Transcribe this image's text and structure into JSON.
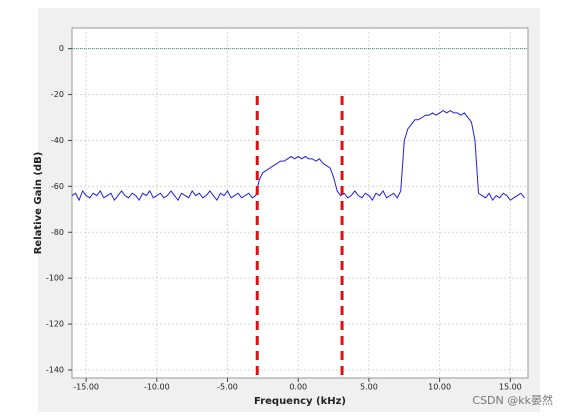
{
  "chart_data": {
    "type": "line",
    "xlabel": "Frequency (kHz)",
    "ylabel": "Relative Gain (dB)",
    "watermark": "CSDN @kk晏然",
    "xlim": [
      -16,
      16.25
    ],
    "ylim": [
      -143.5,
      9
    ],
    "xticks": [
      {
        "value": -15,
        "label": "-15.00"
      },
      {
        "value": -10,
        "label": "-10.00"
      },
      {
        "value": -5,
        "label": "-5.00"
      },
      {
        "value": 0,
        "label": "0.00"
      },
      {
        "value": 5,
        "label": "5.00"
      },
      {
        "value": 10,
        "label": "10.00"
      },
      {
        "value": 15,
        "label": "15.00"
      }
    ],
    "yticks": [
      0,
      -20,
      -40,
      -60,
      -80,
      -100,
      -120,
      -140
    ],
    "grid": true,
    "hline": 0,
    "hline_color": "#2a9d7a",
    "vlines": [
      -2.9,
      3.1
    ],
    "vline_color": "#e01010",
    "x": [
      -16,
      -15.75,
      -15.5,
      -15.25,
      -15,
      -14.75,
      -14.5,
      -14.25,
      -14,
      -13.75,
      -13.5,
      -13.25,
      -13,
      -12.75,
      -12.5,
      -12.25,
      -12,
      -11.75,
      -11.5,
      -11.25,
      -11,
      -10.75,
      -10.5,
      -10.25,
      -10,
      -9.75,
      -9.5,
      -9.25,
      -9,
      -8.75,
      -8.5,
      -8.25,
      -8,
      -7.75,
      -7.5,
      -7.25,
      -7,
      -6.75,
      -6.5,
      -6.25,
      -6,
      -5.75,
      -5.5,
      -5.25,
      -5,
      -4.75,
      -4.5,
      -4.25,
      -4,
      -3.75,
      -3.5,
      -3.25,
      -3,
      -2.75,
      -2.5,
      -2.25,
      -2,
      -1.75,
      -1.5,
      -1.25,
      -1,
      -0.75,
      -0.5,
      -0.25,
      0,
      0.25,
      0.5,
      0.75,
      1,
      1.25,
      1.5,
      1.75,
      2,
      2.25,
      2.5,
      2.75,
      3,
      3.25,
      3.5,
      3.75,
      4,
      4.25,
      4.5,
      4.75,
      5,
      5.25,
      5.5,
      5.75,
      6,
      6.25,
      6.5,
      6.75,
      7,
      7.25,
      7.5,
      7.75,
      8,
      8.25,
      8.5,
      8.75,
      9,
      9.25,
      9.5,
      9.75,
      10,
      10.25,
      10.5,
      10.75,
      11,
      11.25,
      11.5,
      11.75,
      12,
      12.25,
      12.5,
      12.75,
      13,
      13.25,
      13.5,
      13.75,
      14,
      14.25,
      14.5,
      14.75,
      15,
      15.25,
      15.5,
      15.75,
      16
    ],
    "series": [
      {
        "color": "#1f1fe0",
        "values": [
          -64,
          -63,
          -66,
          -62,
          -64,
          -65,
          -63,
          -64,
          -62,
          -65,
          -64,
          -63,
          -66,
          -64,
          -62,
          -64,
          -65,
          -63,
          -64,
          -66,
          -63,
          -64,
          -62,
          -65,
          -64,
          -63,
          -65,
          -64,
          -62,
          -64,
          -66,
          -63,
          -64,
          -65,
          -62,
          -64,
          -63,
          -65,
          -64,
          -62,
          -64,
          -66,
          -63,
          -64,
          -62,
          -65,
          -64,
          -63,
          -65,
          -64,
          -63,
          -65,
          -64,
          -57,
          -54,
          -53,
          -52,
          -51,
          -50,
          -49,
          -49,
          -48,
          -47,
          -48,
          -47,
          -48,
          -47,
          -48,
          -48,
          -49,
          -48,
          -50,
          -51,
          -52,
          -56,
          -62,
          -64,
          -63,
          -65,
          -64,
          -62,
          -64,
          -65,
          -63,
          -64,
          -66,
          -63,
          -64,
          -62,
          -65,
          -64,
          -63,
          -65,
          -62,
          -40,
          -35,
          -33,
          -31,
          -31,
          -30,
          -29,
          -29,
          -28,
          -29,
          -28,
          -27,
          -28,
          -27,
          -28,
          -28,
          -29,
          -28,
          -30,
          -32,
          -40,
          -63,
          -64,
          -65,
          -63,
          -66,
          -64,
          -65,
          -63,
          -64,
          -66,
          -65,
          -64,
          -63,
          -65
        ]
      }
    ]
  }
}
